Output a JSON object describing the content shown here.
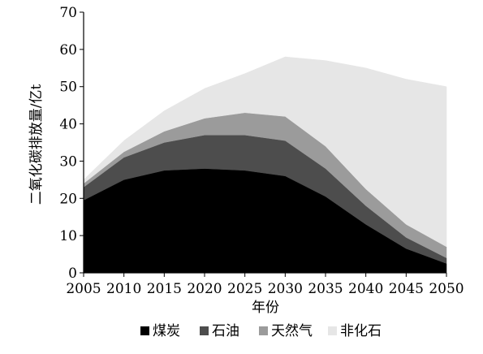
{
  "chart_data": {
    "type": "area",
    "stacked": true,
    "x": [
      2005,
      2010,
      2015,
      2020,
      2025,
      2030,
      2035,
      2040,
      2045,
      2050
    ],
    "series": [
      {
        "name": "煤炭",
        "color": "#000000",
        "values": [
          19.5,
          25,
          27.5,
          28,
          27.5,
          26,
          20.5,
          13,
          6.5,
          2.5
        ]
      },
      {
        "name": "石油",
        "color": "#4d4d4d",
        "values": [
          3.5,
          6,
          7.5,
          9,
          9.5,
          9.5,
          7.5,
          5,
          3,
          1.5
        ]
      },
      {
        "name": "天然气",
        "color": "#9b9b9b",
        "values": [
          1,
          1.5,
          3,
          4.5,
          6,
          6.5,
          6,
          4.5,
          3.5,
          3
        ]
      },
      {
        "name": "非化石",
        "color": "#e6e6e6",
        "values": [
          1,
          3,
          5.5,
          8,
          10.5,
          16,
          23,
          32.5,
          39,
          43
        ]
      }
    ],
    "xlabel": "年份",
    "ylabel": "二氧化碳排放量/亿t",
    "ylim": [
      0,
      70
    ],
    "yticks": [
      0,
      10,
      20,
      30,
      40,
      50,
      60,
      70
    ],
    "xticks": [
      2005,
      2010,
      2015,
      2020,
      2025,
      2030,
      2035,
      2040,
      2045,
      2050
    ],
    "grid": false,
    "legend_position": "bottom"
  }
}
